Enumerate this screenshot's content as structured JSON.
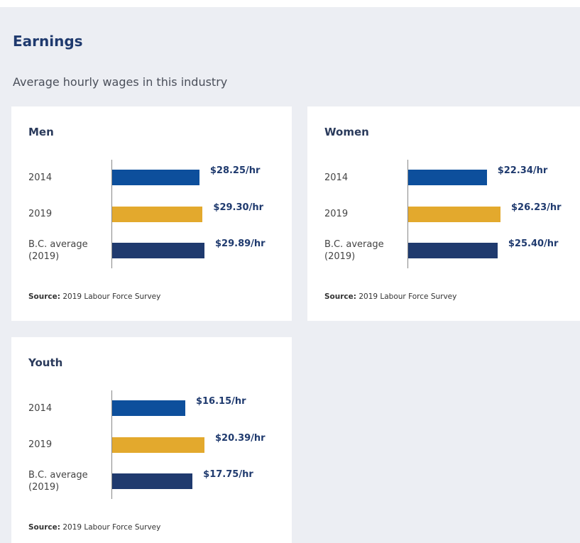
{
  "header": {
    "title": "Earnings",
    "subtitle": "Average hourly wages in this industry"
  },
  "chart_data": [
    {
      "type": "bar",
      "orientation": "horizontal",
      "title": "Men",
      "categories": [
        "2014",
        "2019",
        "B.C. average (2019)"
      ],
      "values": [
        28.25,
        29.3,
        29.89
      ],
      "value_labels": [
        "$28.25/hr",
        "$29.30/hr",
        "$29.89/hr"
      ],
      "colors": [
        "#0d4f9c",
        "#e3a92d",
        "#1f3a6e"
      ],
      "source_label": "Source:",
      "source": "2019 Labour Force Survey"
    },
    {
      "type": "bar",
      "orientation": "horizontal",
      "title": "Women",
      "categories": [
        "2014",
        "2019",
        "B.C. average (2019)"
      ],
      "values": [
        22.34,
        26.23,
        25.4
      ],
      "value_labels": [
        "$22.34/hr",
        "$26.23/hr",
        "$25.40/hr"
      ],
      "colors": [
        "#0d4f9c",
        "#e3a92d",
        "#1f3a6e"
      ],
      "source_label": "Source:",
      "source": "2019 Labour Force Survey"
    },
    {
      "type": "bar",
      "orientation": "horizontal",
      "title": "Youth",
      "categories": [
        "2014",
        "2019",
        "B.C. average (2019)"
      ],
      "values": [
        16.15,
        20.39,
        17.75
      ],
      "value_labels": [
        "$16.15/hr",
        "$20.39/hr",
        "$17.75/hr"
      ],
      "colors": [
        "#0d4f9c",
        "#e3a92d",
        "#1f3a6e"
      ],
      "source_label": "Source:",
      "source": "2019 Labour Force Survey"
    }
  ]
}
